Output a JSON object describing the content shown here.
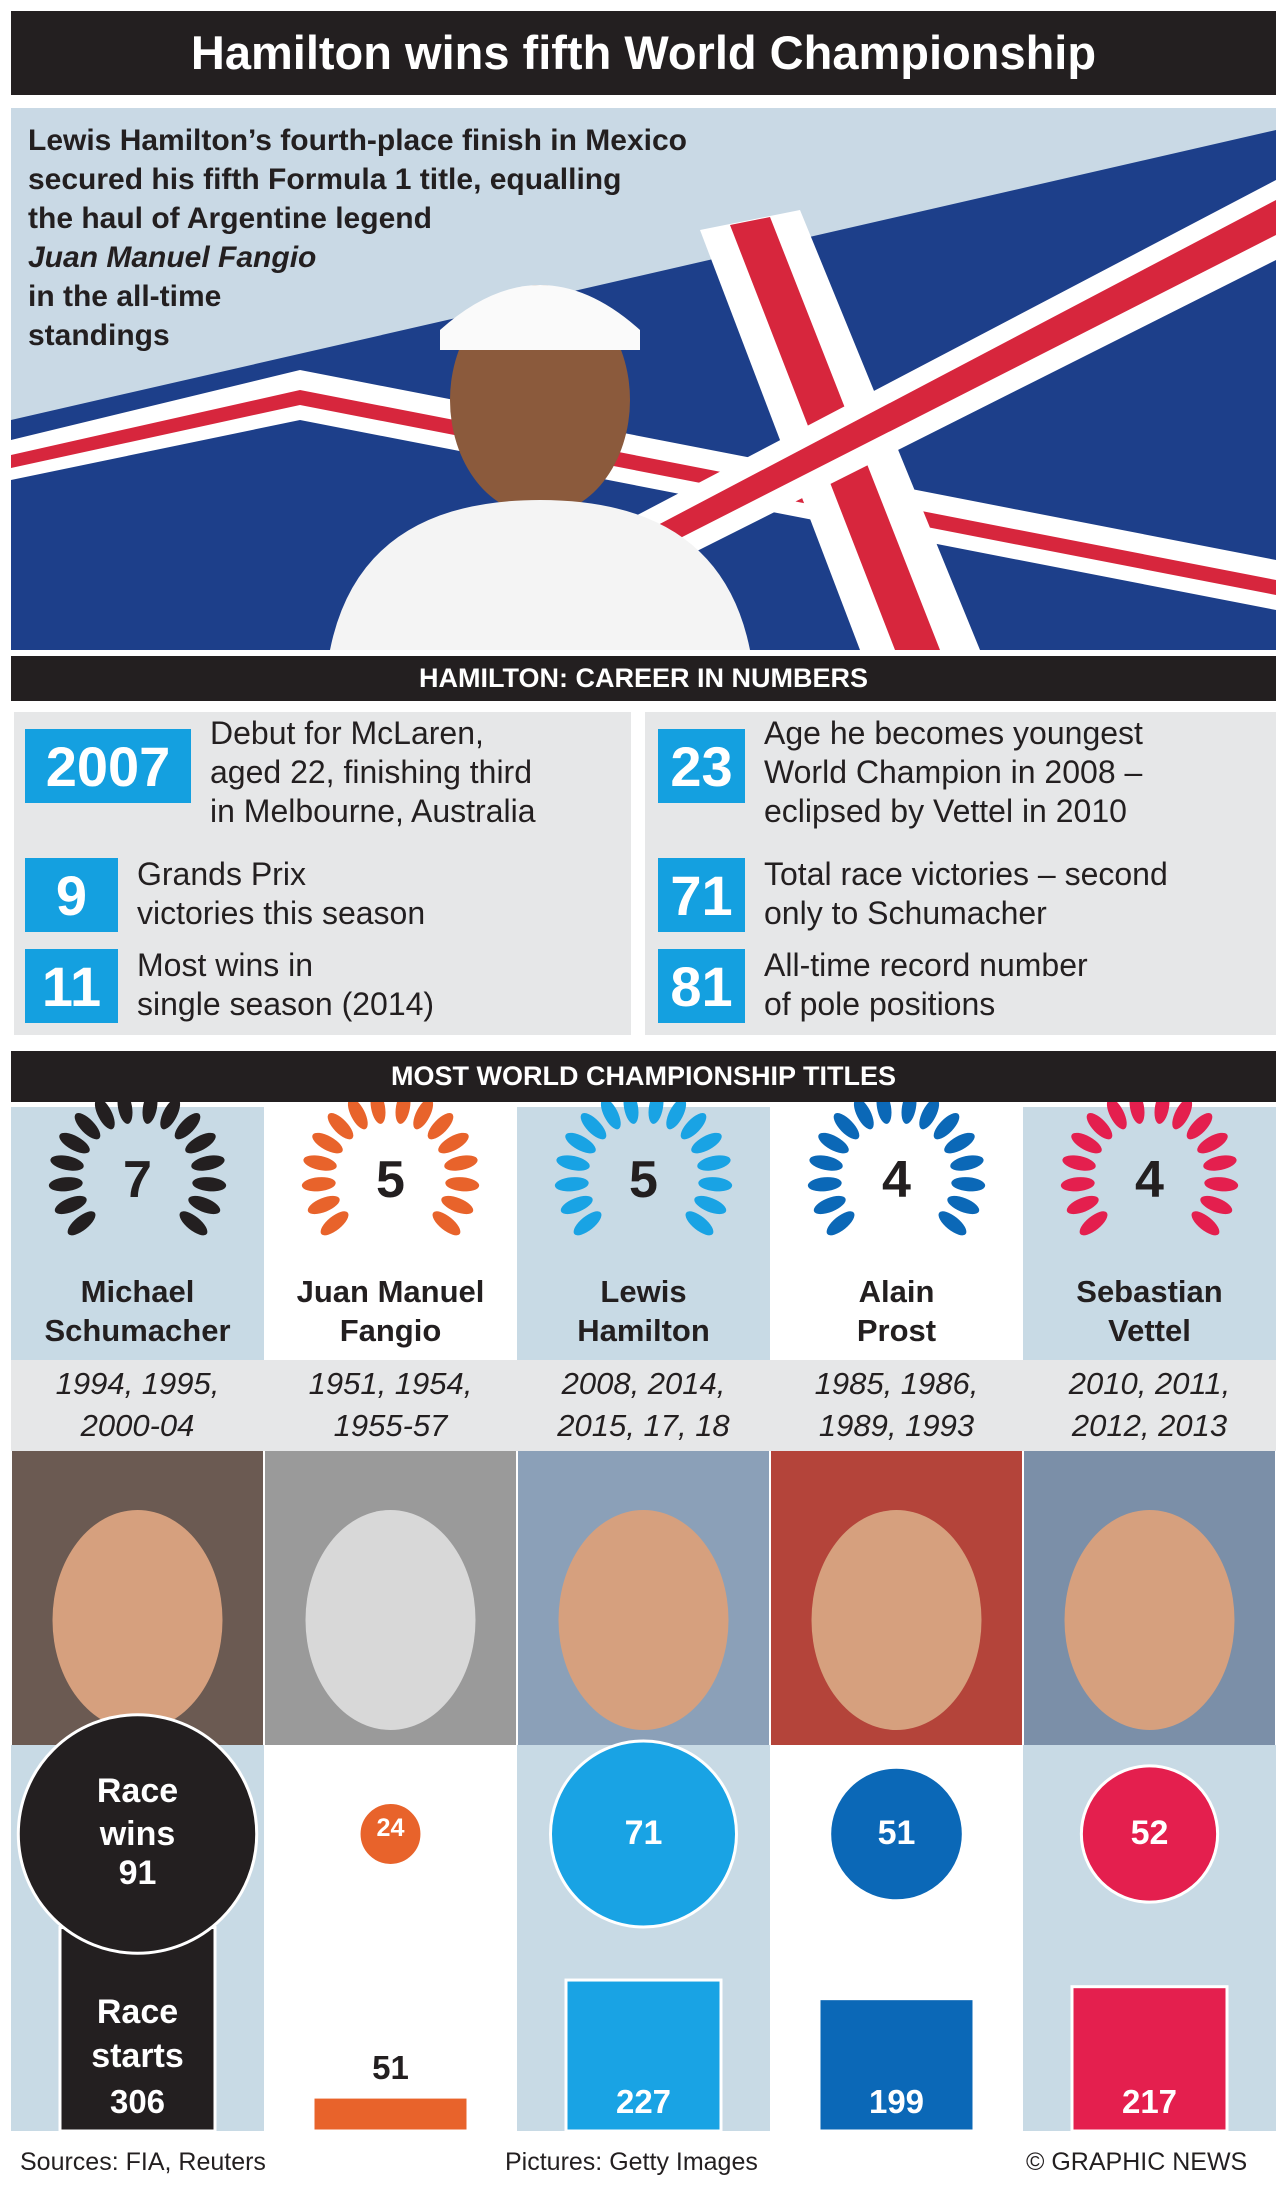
{
  "header": {
    "title": "Hamilton wins fifth World Championship"
  },
  "intro": {
    "lines": [
      "Lewis Hamilton’s fourth-place finish in Mexico",
      "secured his fifth Formula 1 title, equalling",
      "the haul of Argentine legend",
      "Juan Manuel Fangio",
      "in the all-time",
      "standings"
    ]
  },
  "career": {
    "title": "HAMILTON: CAREER IN NUMBERS",
    "left": [
      {
        "number": 2007,
        "text": [
          "Debut for McLaren,",
          "aged 22, finishing third",
          "in Melbourne, Australia"
        ]
      },
      {
        "number": 9,
        "text": [
          "Grands Prix",
          "victories this season"
        ]
      },
      {
        "number": 11,
        "text": [
          "Most wins in",
          "single season (2014)"
        ]
      }
    ],
    "right": [
      {
        "number": 23,
        "text": [
          "Age he becomes youngest",
          "World Champion in 2008 –",
          "eclipsed by Vettel in 2010"
        ]
      },
      {
        "number": 71,
        "text": [
          "Total race victories – second",
          "only to Schumacher"
        ]
      },
      {
        "number": 81,
        "text": [
          "All-time record number",
          "of pole positions"
        ]
      }
    ]
  },
  "titles": {
    "title": "MOST WORLD CHAMPIONSHIP TITLES",
    "race_wins_label": "Race wins",
    "race_starts_label": "Race starts",
    "drivers": [
      {
        "titles": 7,
        "name": [
          "Michael",
          "Schumacher"
        ],
        "years": [
          "1994, 1995,",
          "2000-04"
        ],
        "color": "#231f20",
        "race_wins": 91,
        "race_starts": 306
      },
      {
        "titles": 5,
        "name": [
          "Juan Manuel",
          "Fangio"
        ],
        "years": [
          "1951, 1954,",
          "1955-57"
        ],
        "color": "#e8632b",
        "race_wins": 24,
        "race_starts": 51
      },
      {
        "titles": 5,
        "name": [
          "Lewis",
          "Hamilton"
        ],
        "years": [
          "2008, 2014,",
          "2015, 17, 18"
        ],
        "color": "#19a3e4",
        "race_wins": 71,
        "race_starts": 227
      },
      {
        "titles": 4,
        "name": [
          "Alain",
          "Prost"
        ],
        "years": [
          "1985, 1986,",
          "1989, 1993"
        ],
        "color": "#0b68b7",
        "race_wins": 51,
        "race_starts": 199
      },
      {
        "titles": 4,
        "name": [
          "Sebastian",
          "Vettel"
        ],
        "years": [
          "2010, 2011,",
          "2012, 2013"
        ],
        "color": "#e41f4e",
        "race_wins": 52,
        "race_starts": 217
      }
    ]
  },
  "footer": {
    "sources": "Sources: FIA, Reuters",
    "pictures": "Pictures: Getty Images",
    "credit": "© GRAPHIC NEWS"
  }
}
